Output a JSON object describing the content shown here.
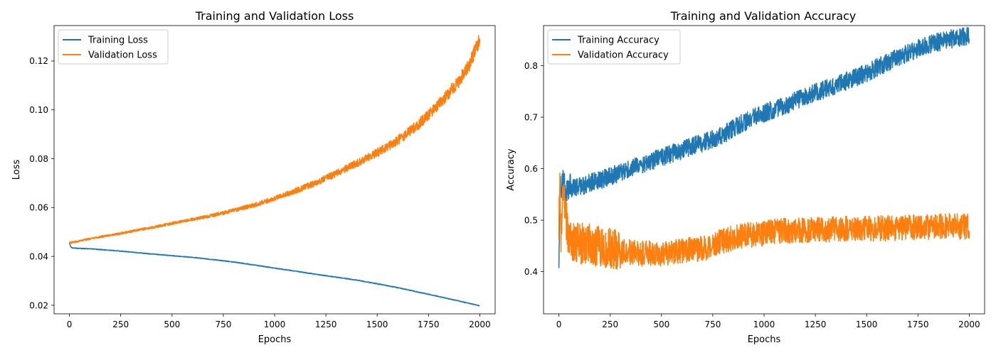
{
  "chart_data": [
    {
      "type": "line",
      "title": "Training and Validation Loss",
      "xlabel": "Epochs",
      "ylabel": "Loss",
      "xlim": [
        -75,
        2075
      ],
      "ylim": [
        0.0165,
        0.1345
      ],
      "xticks": [
        0,
        250,
        500,
        750,
        1000,
        1250,
        1500,
        1750,
        2000
      ],
      "xtick_labels": [
        "0",
        "250",
        "500",
        "750",
        "1000",
        "1250",
        "1500",
        "1750",
        "2000"
      ],
      "yticks": [
        0.02,
        0.04,
        0.06,
        0.08,
        0.1,
        0.12
      ],
      "ytick_labels": [
        "0.02",
        "0.04",
        "0.06",
        "0.08",
        "0.10",
        "0.12"
      ],
      "grid": false,
      "legend": "upper-left",
      "series": [
        {
          "name": "Training Loss",
          "color": "#1f77b4",
          "x": [
            0,
            5,
            10,
            20,
            50,
            100,
            200,
            300,
            400,
            500,
            600,
            700,
            800,
            900,
            1000,
            1100,
            1200,
            1300,
            1400,
            1500,
            1600,
            1700,
            1800,
            1900,
            2000
          ],
          "y": [
            0.0455,
            0.0442,
            0.0436,
            0.0434,
            0.0433,
            0.0431,
            0.0425,
            0.0418,
            0.041,
            0.0403,
            0.0396,
            0.0387,
            0.0377,
            0.0365,
            0.0352,
            0.034,
            0.0327,
            0.0315,
            0.0303,
            0.0288,
            0.0272,
            0.0254,
            0.0236,
            0.0217,
            0.0198
          ]
        },
        {
          "name": "Validation Loss",
          "color": "#ff7f0e",
          "x": [
            0,
            5,
            10,
            50,
            100,
            200,
            300,
            400,
            500,
            600,
            700,
            800,
            900,
            1000,
            1100,
            1200,
            1300,
            1400,
            1500,
            1600,
            1700,
            1800,
            1900,
            1950,
            2000
          ],
          "y": [
            0.046,
            0.0455,
            0.0457,
            0.0464,
            0.0472,
            0.0487,
            0.0502,
            0.0518,
            0.0535,
            0.0552,
            0.0568,
            0.0588,
            0.061,
            0.0637,
            0.0668,
            0.07,
            0.074,
            0.078,
            0.0825,
            0.0875,
            0.094,
            0.102,
            0.112,
            0.1185,
            0.129
          ]
        }
      ]
    },
    {
      "type": "line",
      "title": "Training and Validation Accuracy",
      "xlabel": "Epochs",
      "ylabel": "Accuracy",
      "xlim": [
        -75,
        2075
      ],
      "ylim": [
        0.318,
        0.878
      ],
      "xticks": [
        0,
        250,
        500,
        750,
        1000,
        1250,
        1500,
        1750,
        2000
      ],
      "xtick_labels": [
        "0",
        "250",
        "500",
        "750",
        "1000",
        "1250",
        "1500",
        "1750",
        "2000"
      ],
      "yticks": [
        0.4,
        0.5,
        0.6,
        0.7,
        0.8
      ],
      "ytick_labels": [
        "0.4",
        "0.5",
        "0.6",
        "0.7",
        "0.8"
      ],
      "grid": false,
      "legend": "upper-left",
      "series": [
        {
          "name": "Training Accuracy",
          "color": "#1f77b4",
          "x": [
            0,
            5,
            10,
            20,
            50,
            100,
            150,
            200,
            300,
            400,
            500,
            600,
            700,
            800,
            900,
            1000,
            1100,
            1200,
            1300,
            1400,
            1500,
            1600,
            1700,
            1800,
            1900,
            2000
          ],
          "y": [
            0.435,
            0.55,
            0.57,
            0.57,
            0.56,
            0.565,
            0.572,
            0.578,
            0.592,
            0.607,
            0.622,
            0.636,
            0.65,
            0.666,
            0.69,
            0.708,
            0.722,
            0.74,
            0.755,
            0.77,
            0.786,
            0.806,
            0.825,
            0.841,
            0.851,
            0.858
          ]
        },
        {
          "name": "Validation Accuracy",
          "color": "#ff7f0e",
          "x": [
            0,
            5,
            10,
            20,
            30,
            50,
            100,
            200,
            300,
            400,
            500,
            600,
            700,
            800,
            900,
            1000,
            1100,
            1200,
            1300,
            1400,
            1500,
            1600,
            1700,
            1800,
            1900,
            2000
          ],
          "y": [
            0.5,
            0.56,
            0.47,
            0.55,
            0.52,
            0.46,
            0.455,
            0.45,
            0.44,
            0.435,
            0.435,
            0.44,
            0.445,
            0.46,
            0.47,
            0.475,
            0.48,
            0.48,
            0.482,
            0.483,
            0.484,
            0.484,
            0.486,
            0.487,
            0.488,
            0.487
          ]
        }
      ]
    }
  ]
}
